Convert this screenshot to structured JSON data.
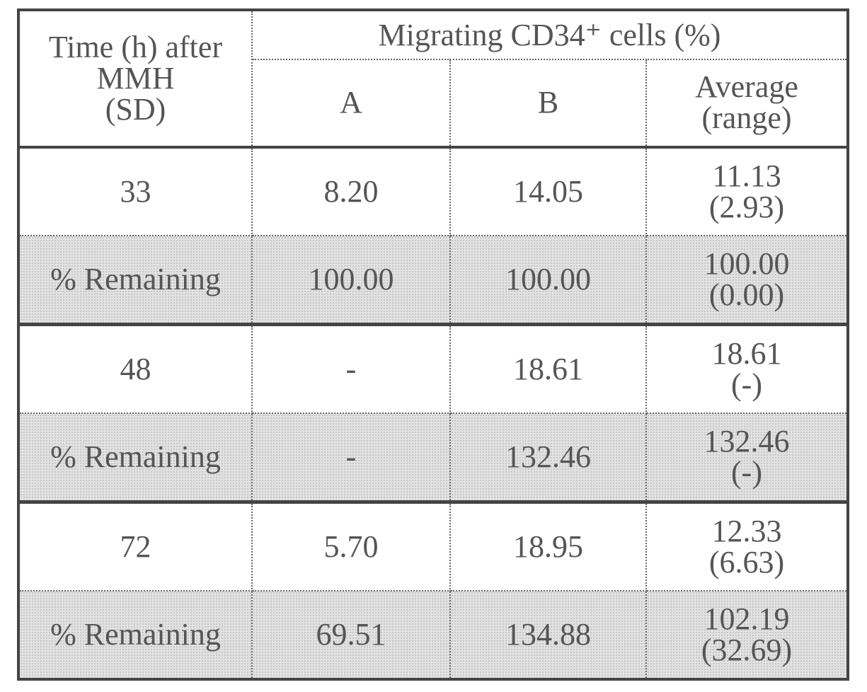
{
  "table": {
    "header": {
      "time": [
        "Time (h) after",
        "MMH",
        "(SD)"
      ],
      "group": "Migrating CD34⁺ cells (%)",
      "columns": [
        "A",
        "B"
      ],
      "average": [
        "Average",
        "(range)"
      ]
    },
    "rows": [
      {
        "time": "33",
        "a": "8.20",
        "b": "14.05",
        "average": [
          "11.13",
          "(2.93)"
        ]
      },
      {
        "time": "% Remaining",
        "a": "100.00",
        "b": "100.00",
        "average": [
          "100.00",
          "(0.00)"
        ]
      },
      {
        "time": "48",
        "a": "-",
        "b": "18.61",
        "average": [
          "18.61",
          "(-)"
        ]
      },
      {
        "time": "% Remaining",
        "a": "-",
        "b": "132.46",
        "average": [
          "132.46",
          "(-)"
        ]
      },
      {
        "time": "72",
        "a": "5.70",
        "b": "18.95",
        "average": [
          "12.33",
          "(6.63)"
        ]
      },
      {
        "time": "% Remaining",
        "a": "69.51",
        "b": "134.88",
        "average": [
          "102.19",
          "(32.69)"
        ]
      }
    ]
  }
}
